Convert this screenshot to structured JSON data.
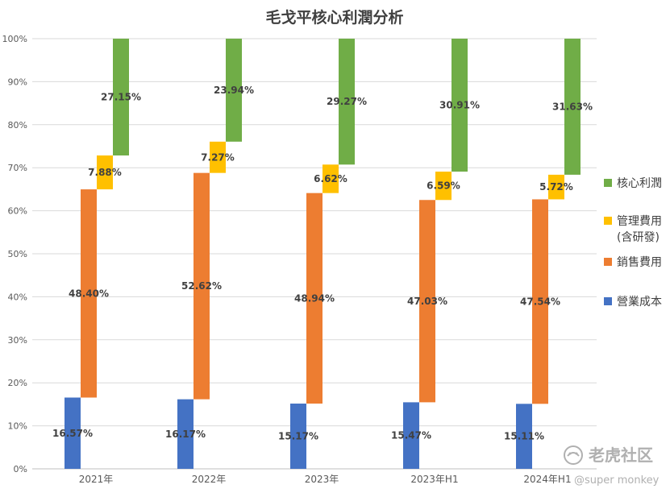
{
  "chart_data": {
    "type": "bar",
    "title": "毛戈平核心利潤分析",
    "categories": [
      "2021年",
      "2022年",
      "2023年",
      "2023年H1",
      "2024年H1"
    ],
    "ylim": [
      0,
      100
    ],
    "yticks": [
      "0%",
      "10%",
      "20%",
      "30%",
      "40%",
      "50%",
      "60%",
      "70%",
      "80%",
      "90%",
      "100%"
    ],
    "grid": true,
    "legend_position": "right",
    "series": [
      {
        "name": "營業成本",
        "color": "#4472C4",
        "values": [
          16.57,
          16.17,
          15.17,
          15.47,
          15.11
        ],
        "labels": [
          "16.57%",
          "16.17%",
          "15.17%",
          "15.47%",
          "15.11%"
        ]
      },
      {
        "name": "銷售費用",
        "color": "#ED7D31",
        "values": [
          48.4,
          52.62,
          48.94,
          47.03,
          47.54
        ],
        "labels": [
          "48.40%",
          "52.62%",
          "48.94%",
          "47.03%",
          "47.54%"
        ]
      },
      {
        "name": "管理費用 (含研發)",
        "legend_lines": [
          "管理費用",
          "(含研發)"
        ],
        "color": "#FFC000",
        "values": [
          7.88,
          7.27,
          6.62,
          6.59,
          5.72
        ],
        "labels": [
          "7.88%",
          "7.27%",
          "6.62%",
          "6.59%",
          "5.72%"
        ]
      },
      {
        "name": "核心利潤",
        "color": "#70AD47",
        "values": [
          27.15,
          23.94,
          29.27,
          30.91,
          31.63
        ],
        "labels": [
          "27.15%",
          "23.94%",
          "29.27%",
          "30.91%",
          "31.63%"
        ]
      }
    ]
  },
  "watermark": {
    "brand": "老虎社区",
    "handle": "@super monkey",
    "icon": "tiger-icon"
  }
}
